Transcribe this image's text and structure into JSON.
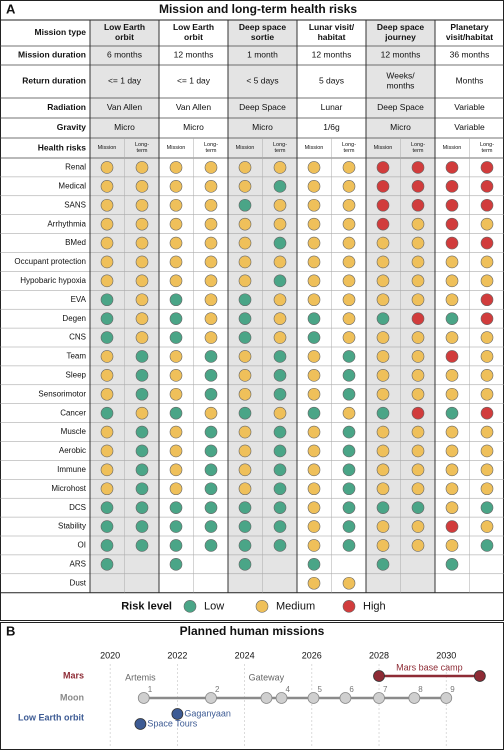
{
  "panel_a": {
    "label": "A",
    "title": "Mission and long-term health risks",
    "table": {
      "header_rows": [
        {
          "label": "Mission type",
          "values": [
            "Low Earth\norbit",
            "Low Earth\norbit",
            "Deep space\nsortie",
            "Lunar visit/\nhabitat",
            "Deep space\njourney",
            "Planetary\nvisit/habitat"
          ]
        },
        {
          "label": "Mission duration",
          "values": [
            "6 months",
            "12 months",
            "1 month",
            "12 months",
            "12 months",
            "36 months"
          ]
        },
        {
          "label": "Return duration",
          "values": [
            "<= 1 day",
            "<= 1 day",
            "< 5 days",
            "5 days",
            "Weeks/\nmonths",
            "Months"
          ]
        },
        {
          "label": "Radiation",
          "values": [
            "Van Allen",
            "Van Allen",
            "Deep Space",
            "Lunar",
            "Deep Space",
            "Variable"
          ]
        },
        {
          "label": "Gravity",
          "values": [
            "Micro",
            "Micro",
            "Micro",
            "1/6g",
            "Micro",
            "Variable"
          ]
        }
      ],
      "shaded": [
        true,
        false,
        true,
        false,
        true,
        false
      ],
      "risk_header": "Health risks",
      "subheaders": [
        "Mission",
        "Long-\nterm"
      ],
      "rows": [
        {
          "label": "Renal",
          "cells": [
            1,
            1,
            1,
            1,
            1,
            1,
            1,
            1,
            2,
            2,
            2,
            2
          ]
        },
        {
          "label": "Medical",
          "cells": [
            1,
            1,
            1,
            1,
            1,
            0,
            1,
            1,
            2,
            2,
            2,
            2
          ]
        },
        {
          "label": "SANS",
          "cells": [
            1,
            1,
            1,
            1,
            0,
            1,
            1,
            1,
            2,
            2,
            2,
            2
          ]
        },
        {
          "label": "Arrhythmia",
          "cells": [
            1,
            1,
            1,
            1,
            1,
            1,
            1,
            1,
            2,
            1,
            2,
            1
          ]
        },
        {
          "label": "BMed",
          "cells": [
            1,
            1,
            1,
            1,
            1,
            0,
            1,
            1,
            1,
            1,
            2,
            2
          ]
        },
        {
          "label": "Occupant protection",
          "cells": [
            1,
            1,
            1,
            1,
            1,
            1,
            1,
            1,
            1,
            1,
            1,
            1
          ]
        },
        {
          "label": "Hypobaric hypoxia",
          "cells": [
            1,
            1,
            1,
            1,
            1,
            0,
            1,
            1,
            1,
            1,
            1,
            1
          ]
        },
        {
          "label": "EVA",
          "cells": [
            0,
            1,
            0,
            1,
            0,
            1,
            1,
            1,
            1,
            1,
            1,
            2
          ]
        },
        {
          "label": "Degen",
          "cells": [
            0,
            1,
            0,
            1,
            0,
            1,
            0,
            1,
            0,
            2,
            0,
            2
          ]
        },
        {
          "label": "CNS",
          "cells": [
            0,
            1,
            0,
            1,
            0,
            1,
            0,
            1,
            1,
            1,
            1,
            1
          ]
        },
        {
          "label": "Team",
          "cells": [
            1,
            0,
            1,
            0,
            1,
            0,
            1,
            0,
            1,
            1,
            2,
            1
          ]
        },
        {
          "label": "Sleep",
          "cells": [
            1,
            0,
            1,
            0,
            1,
            0,
            1,
            0,
            1,
            1,
            1,
            1
          ]
        },
        {
          "label": "Sensorimotor",
          "cells": [
            1,
            0,
            1,
            0,
            1,
            0,
            1,
            0,
            1,
            1,
            1,
            1
          ]
        },
        {
          "label": "Cancer",
          "cells": [
            0,
            1,
            0,
            1,
            0,
            1,
            0,
            1,
            0,
            2,
            0,
            2
          ]
        },
        {
          "label": "Muscle",
          "cells": [
            1,
            0,
            1,
            0,
            1,
            0,
            1,
            0,
            1,
            1,
            1,
            1
          ]
        },
        {
          "label": "Aerobic",
          "cells": [
            1,
            0,
            1,
            0,
            1,
            0,
            1,
            0,
            1,
            1,
            1,
            1
          ]
        },
        {
          "label": "Immune",
          "cells": [
            1,
            0,
            1,
            0,
            1,
            0,
            1,
            0,
            1,
            1,
            1,
            1
          ]
        },
        {
          "label": "Microhost",
          "cells": [
            1,
            0,
            1,
            0,
            1,
            0,
            1,
            0,
            1,
            1,
            1,
            1
          ]
        },
        {
          "label": "DCS",
          "cells": [
            0,
            0,
            0,
            0,
            0,
            0,
            1,
            0,
            0,
            0,
            1,
            0
          ]
        },
        {
          "label": "Stability",
          "cells": [
            0,
            0,
            0,
            0,
            0,
            0,
            1,
            0,
            1,
            1,
            2,
            1
          ]
        },
        {
          "label": "OI",
          "cells": [
            0,
            0,
            0,
            0,
            0,
            0,
            1,
            0,
            1,
            1,
            1,
            0
          ]
        },
        {
          "label": "ARS",
          "cells": [
            0,
            null,
            0,
            null,
            0,
            null,
            0,
            null,
            0,
            null,
            0,
            null
          ]
        },
        {
          "label": "Dust",
          "cells": [
            null,
            null,
            null,
            null,
            null,
            null,
            1,
            1,
            null,
            null,
            null,
            null
          ]
        }
      ]
    },
    "legend": {
      "title": "Risk level",
      "items": [
        {
          "label": "Low",
          "color": "#4aa587"
        },
        {
          "label": "Medium",
          "color": "#efc05a"
        },
        {
          "label": "High",
          "color": "#d13c3c"
        }
      ]
    }
  },
  "panel_b": {
    "label": "B",
    "chart_data": {
      "type": "timeline",
      "title": "Planned human missions",
      "xlim": [
        2019.4,
        2031.6
      ],
      "xticks": [
        2020,
        2022,
        2024,
        2026,
        2028,
        2030
      ],
      "grid": true,
      "series": [
        {
          "name": "Mars",
          "color": "#8e2b35",
          "line": true,
          "x": [
            2028,
            2031
          ],
          "point_labels": [
            null,
            null
          ],
          "annotations": [
            {
              "text": "Mars base camp",
              "x": 2029.5
            }
          ]
        },
        {
          "name": "Moon",
          "color": "#8a8a8a",
          "line": true,
          "x": [
            2021,
            2023,
            2024.65,
            2025.1,
            2026.05,
            2027,
            2028,
            2029.05,
            2030
          ],
          "point_labels": [
            "1",
            "2",
            null,
            "4",
            "5",
            "6",
            "7",
            "8",
            "9"
          ],
          "annotations": [
            {
              "text": "Artemis",
              "x": 2020.9
            },
            {
              "text": "Gateway",
              "x": 2024.65
            }
          ]
        },
        {
          "name": "Low Earth orbit",
          "color": "#3d5b94",
          "line": false,
          "x": [
            2020.9,
            2022
          ],
          "point_labels": [
            "Space Tours",
            "Gaganyaan"
          ],
          "annotations": []
        }
      ]
    }
  }
}
